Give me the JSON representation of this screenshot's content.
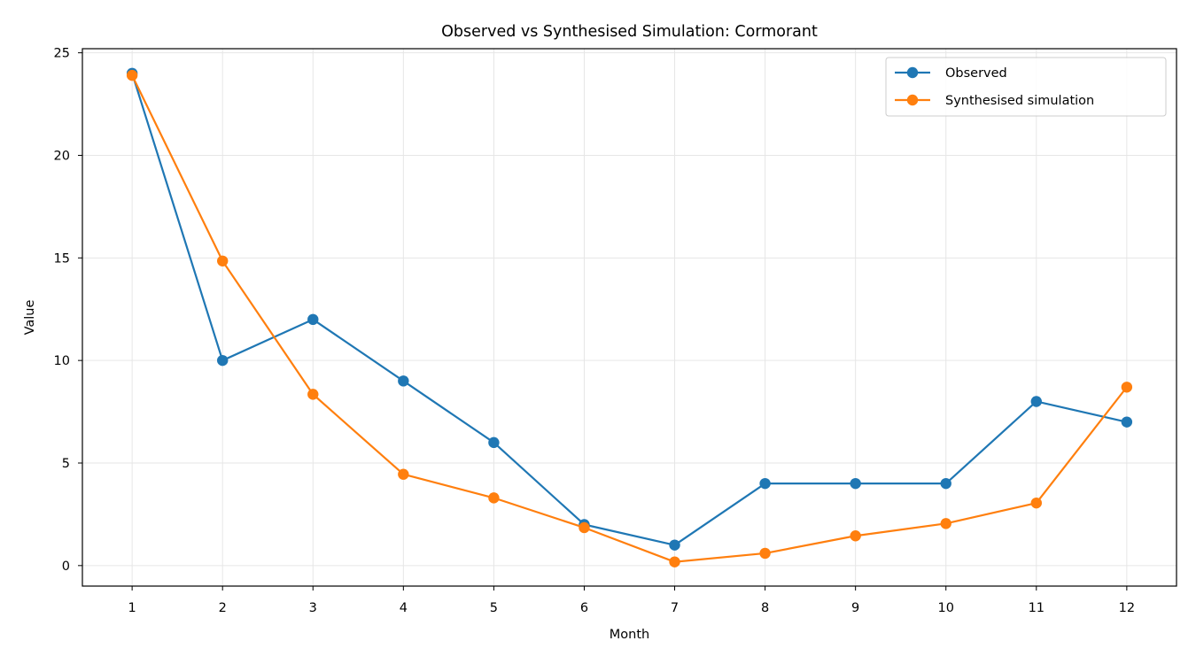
{
  "chart_data": {
    "type": "line",
    "title": "Observed vs Synthesised Simulation: Cormorant",
    "xlabel": "Month",
    "ylabel": "Value",
    "x": [
      1,
      2,
      3,
      4,
      5,
      6,
      7,
      8,
      9,
      10,
      11,
      12
    ],
    "xlim": [
      0.45,
      12.55
    ],
    "ylim": [
      -1.0,
      25.2
    ],
    "x_ticks": [
      "1",
      "2",
      "3",
      "4",
      "5",
      "6",
      "7",
      "8",
      "9",
      "10",
      "11",
      "12"
    ],
    "y_ticks": [
      "0",
      "5",
      "10",
      "15",
      "20",
      "25"
    ],
    "grid": true,
    "legend_position": "top-right",
    "series": [
      {
        "name": "Observed",
        "color": "#1f77b4",
        "values": [
          24,
          10,
          12,
          9,
          6,
          2,
          1,
          4,
          4,
          4,
          8,
          7
        ]
      },
      {
        "name": "Synthesised simulation",
        "color": "#ff7f0e",
        "values": [
          23.9,
          14.85,
          8.35,
          4.45,
          3.3,
          1.85,
          0.18,
          0.6,
          1.45,
          2.05,
          3.05,
          8.7
        ]
      }
    ]
  }
}
